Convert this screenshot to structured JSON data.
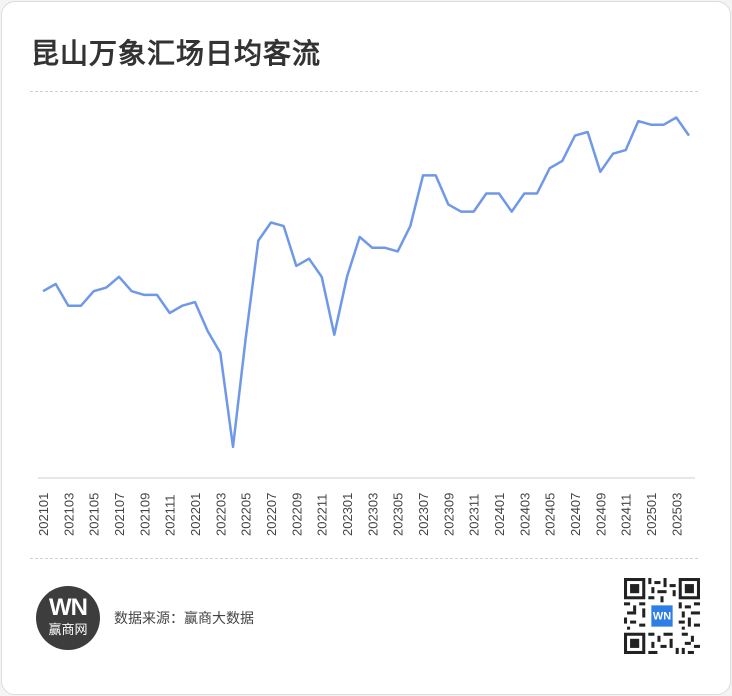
{
  "header": {
    "title": "昆山万象汇场日均客流"
  },
  "footer": {
    "logo_mark": "WN",
    "logo_name": "赢商网",
    "source": "数据来源：赢商大数据"
  },
  "colors": {
    "line": "#6f98e8",
    "title": "#333333",
    "logo_bg": "#3d3d3d",
    "qr_accent": "#2f7ee6"
  },
  "chart_data": {
    "type": "line",
    "title": "昆山万象汇场日均客流",
    "xlabel": "",
    "ylabel": "",
    "ylim": [
      0,
      100
    ],
    "grid": false,
    "legend": "none",
    "x": [
      "202101",
      "202102",
      "202103",
      "202104",
      "202105",
      "202106",
      "202107",
      "202108",
      "202109",
      "202110",
      "202111",
      "202112",
      "202201",
      "202202",
      "202203",
      "202204",
      "202205",
      "202206",
      "202207",
      "202208",
      "202209",
      "202210",
      "202211",
      "202212",
      "202301",
      "202302",
      "202303",
      "202304",
      "202305",
      "202306",
      "202307",
      "202308",
      "202309",
      "202310",
      "202311",
      "202312",
      "202401",
      "202402",
      "202403",
      "202404",
      "202405",
      "202406",
      "202407",
      "202408",
      "202409",
      "202410",
      "202411",
      "202412",
      "202501",
      "202502",
      "202503",
      "202504"
    ],
    "tick_labels": [
      "202101",
      "202103",
      "202105",
      "202107",
      "202109",
      "202111",
      "202201",
      "202203",
      "202205",
      "202207",
      "202209",
      "202211",
      "202301",
      "202303",
      "202305",
      "202307",
      "202309",
      "202311",
      "202401",
      "202403",
      "202405",
      "202407",
      "202409",
      "202411",
      "202501",
      "202503"
    ],
    "series": [
      {
        "values": [
          48,
          50,
          44,
          44,
          48,
          49,
          52,
          48,
          47,
          47,
          42,
          44,
          45,
          37,
          31,
          5,
          35,
          62,
          67,
          66,
          55,
          57,
          52,
          36,
          52,
          63,
          60,
          60,
          59,
          66,
          80,
          80,
          72,
          70,
          70,
          75,
          75,
          70,
          75,
          75,
          82,
          84,
          91,
          92,
          81,
          86,
          87,
          95,
          94,
          94,
          96,
          91
        ]
      }
    ]
  }
}
